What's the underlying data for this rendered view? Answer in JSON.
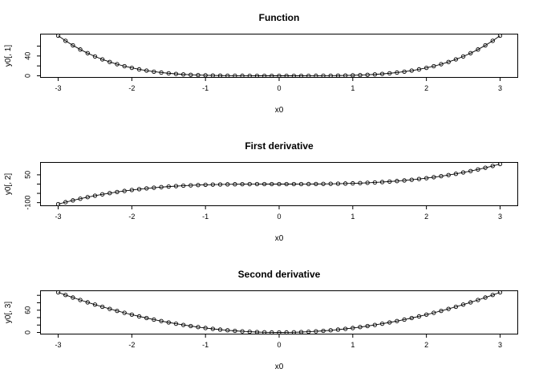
{
  "figure": {
    "background_color": "#ffffff",
    "foreground_color": "#000000",
    "marker_icon": "open-circle",
    "panels_stacked": 3
  },
  "chart_data": [
    {
      "type": "line",
      "title": "Function",
      "xlabel": "x0",
      "ylabel": "y0[, 1]",
      "marker": "open-circle",
      "line_style": "solid",
      "grid": "off",
      "legend": "none",
      "xlim": [
        -3.24,
        3.24
      ],
      "ylim": [
        -3.24,
        84.24
      ],
      "x_ticks": [
        -3,
        -2,
        -1,
        0,
        1,
        2,
        3
      ],
      "x_tick_labels": [
        "-3",
        "-2",
        "-1",
        "0",
        "1",
        "2",
        "3"
      ],
      "y_ticks": [
        0,
        20,
        40,
        60
      ],
      "y_tick_labels": [
        "0",
        "",
        "40",
        ""
      ],
      "x": [
        -3,
        -2.9,
        -2.8,
        -2.7,
        -2.6,
        -2.5,
        -2.4,
        -2.3,
        -2.2,
        -2.1,
        -2,
        -1.9,
        -1.8,
        -1.7,
        -1.6,
        -1.5,
        -1.4,
        -1.3,
        -1.2,
        -1.1,
        -1,
        -0.9,
        -0.8,
        -0.7,
        -0.6,
        -0.5,
        -0.4,
        -0.3,
        -0.2,
        -0.1,
        0,
        0.1,
        0.2,
        0.3,
        0.4,
        0.5,
        0.6,
        0.7,
        0.8,
        0.9,
        1,
        1.1,
        1.2,
        1.3,
        1.4,
        1.5,
        1.6,
        1.7,
        1.8,
        1.9,
        2,
        2.1,
        2.2,
        2.3,
        2.4,
        2.5,
        2.6,
        2.7,
        2.8,
        2.9,
        3
      ],
      "values": [
        81,
        70.7281,
        61.4656,
        53.1441,
        45.6976,
        39.0625,
        33.1776,
        27.9841,
        23.4256,
        19.4481,
        16,
        13.0321,
        10.4976,
        8.3521,
        6.5536,
        5.0625,
        3.8416,
        2.8561,
        2.0736,
        1.4641,
        1,
        0.6561,
        0.4096,
        0.2401,
        0.1296,
        0.0625,
        0.0256,
        0.0081,
        0.0016,
        0.0001,
        0,
        0.0001,
        0.0016,
        0.0081,
        0.0256,
        0.0625,
        0.1296,
        0.2401,
        0.4096,
        0.6561,
        1,
        1.4641,
        2.0736,
        2.8561,
        3.8416,
        5.0625,
        6.5536,
        8.3521,
        10.4976,
        13.0321,
        16,
        19.4481,
        23.4256,
        27.9841,
        33.1776,
        39.0625,
        45.6976,
        53.1441,
        61.4656,
        70.7281,
        81
      ]
    },
    {
      "type": "line",
      "title": "First derivative",
      "xlabel": "x0",
      "ylabel": "y0[, 2]",
      "marker": "open-circle",
      "line_style": "solid",
      "grid": "off",
      "legend": "none",
      "xlim": [
        -3.24,
        3.24
      ],
      "ylim": [
        -116.64,
        116.64
      ],
      "x_ticks": [
        -3,
        -2,
        -1,
        0,
        1,
        2,
        3
      ],
      "x_tick_labels": [
        "-3",
        "-2",
        "-1",
        "0",
        "1",
        "2",
        "3"
      ],
      "y_ticks": [
        -100,
        -50,
        0,
        50
      ],
      "y_tick_labels": [
        "-100",
        "",
        "",
        "50"
      ],
      "x": [
        -3,
        -2.9,
        -2.8,
        -2.7,
        -2.6,
        -2.5,
        -2.4,
        -2.3,
        -2.2,
        -2.1,
        -2,
        -1.9,
        -1.8,
        -1.7,
        -1.6,
        -1.5,
        -1.4,
        -1.3,
        -1.2,
        -1.1,
        -1,
        -0.9,
        -0.8,
        -0.7,
        -0.6,
        -0.5,
        -0.4,
        -0.3,
        -0.2,
        -0.1,
        0,
        0.1,
        0.2,
        0.3,
        0.4,
        0.5,
        0.6,
        0.7,
        0.8,
        0.9,
        1,
        1.1,
        1.2,
        1.3,
        1.4,
        1.5,
        1.6,
        1.7,
        1.8,
        1.9,
        2,
        2.1,
        2.2,
        2.3,
        2.4,
        2.5,
        2.6,
        2.7,
        2.8,
        2.9,
        3
      ],
      "values": [
        -108,
        -97.556,
        -87.808,
        -78.732,
        -70.304,
        -62.5,
        -55.296,
        -48.668,
        -42.592,
        -37.044,
        -32,
        -27.436,
        -23.328,
        -19.652,
        -16.384,
        -13.5,
        -10.976,
        -8.788,
        -6.912,
        -5.324,
        -4,
        -2.916,
        -2.048,
        -1.372,
        -0.864,
        -0.5,
        -0.256,
        -0.108,
        -0.032,
        -0.004,
        0,
        0.004,
        0.032,
        0.108,
        0.256,
        0.5,
        0.864,
        1.372,
        2.048,
        2.916,
        4,
        5.324,
        6.912,
        8.788,
        10.976,
        13.5,
        16.384,
        19.652,
        23.328,
        27.436,
        32,
        37.044,
        42.592,
        48.668,
        55.296,
        62.5,
        70.304,
        78.732,
        87.808,
        97.556,
        108
      ]
    },
    {
      "type": "line",
      "title": "Second derivative",
      "xlabel": "x0",
      "ylabel": "y0[, 3]",
      "marker": "open-circle",
      "line_style": "solid",
      "grid": "off",
      "legend": "none",
      "xlim": [
        -3.24,
        3.24
      ],
      "ylim": [
        -4.32,
        112.32
      ],
      "x_ticks": [
        -3,
        -2,
        -1,
        0,
        1,
        2,
        3
      ],
      "x_tick_labels": [
        "-3",
        "-2",
        "-1",
        "0",
        "1",
        "2",
        "3"
      ],
      "y_ticks": [
        0,
        20,
        40,
        60,
        80,
        100
      ],
      "y_tick_labels": [
        "0",
        "",
        "",
        "60",
        "",
        ""
      ],
      "x": [
        -3,
        -2.9,
        -2.8,
        -2.7,
        -2.6,
        -2.5,
        -2.4,
        -2.3,
        -2.2,
        -2.1,
        -2,
        -1.9,
        -1.8,
        -1.7,
        -1.6,
        -1.5,
        -1.4,
        -1.3,
        -1.2,
        -1.1,
        -1,
        -0.9,
        -0.8,
        -0.7,
        -0.6,
        -0.5,
        -0.4,
        -0.3,
        -0.2,
        -0.1,
        0,
        0.1,
        0.2,
        0.3,
        0.4,
        0.5,
        0.6,
        0.7,
        0.8,
        0.9,
        1,
        1.1,
        1.2,
        1.3,
        1.4,
        1.5,
        1.6,
        1.7,
        1.8,
        1.9,
        2,
        2.1,
        2.2,
        2.3,
        2.4,
        2.5,
        2.6,
        2.7,
        2.8,
        2.9,
        3
      ],
      "values": [
        108,
        100.92,
        94.08,
        87.48,
        81.12,
        75,
        69.12,
        63.48,
        58.08,
        52.92,
        48,
        43.32,
        38.88,
        34.68,
        30.72,
        27,
        23.52,
        20.28,
        17.28,
        14.52,
        12,
        9.72,
        7.68,
        5.88,
        4.32,
        3,
        1.92,
        1.08,
        0.48,
        0.12,
        0,
        0.12,
        0.48,
        1.08,
        1.92,
        3,
        4.32,
        5.88,
        7.68,
        9.72,
        12,
        14.52,
        17.28,
        20.28,
        23.52,
        27,
        30.72,
        34.68,
        38.88,
        43.32,
        48,
        52.92,
        58.08,
        63.48,
        69.12,
        75,
        81.12,
        87.48,
        94.08,
        100.92,
        108
      ]
    }
  ]
}
